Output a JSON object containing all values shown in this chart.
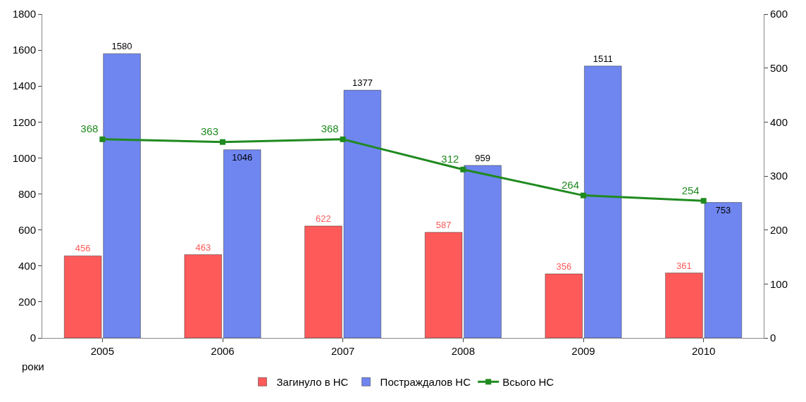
{
  "chart_data": {
    "type": "bar",
    "xlabel": "роки",
    "categories": [
      "2005",
      "2006",
      "2007",
      "2008",
      "2009",
      "2010"
    ],
    "series": [
      {
        "name": "Загинуло в НС",
        "color": "#ff5a5a",
        "values": [
          456,
          463,
          622,
          587,
          356,
          361
        ]
      },
      {
        "name": "Постраждалов НС",
        "color": "#6f86f0",
        "values": [
          1580,
          1046,
          1377,
          959,
          1511,
          753
        ]
      },
      {
        "name": "Всього НС",
        "type": "line",
        "axis": "y2",
        "color": "#1f8a1f",
        "marker": "square",
        "values": [
          368,
          363,
          368,
          312,
          264,
          254
        ]
      }
    ],
    "ylim": [
      0,
      1800
    ],
    "yticks": [
      0,
      200,
      400,
      600,
      800,
      1000,
      1200,
      1400,
      1600,
      1800
    ],
    "y2lim": [
      0,
      600
    ],
    "y2ticks": [
      0,
      100,
      200,
      300,
      400,
      500,
      600
    ],
    "data_labels": true,
    "legend": "bottom"
  }
}
